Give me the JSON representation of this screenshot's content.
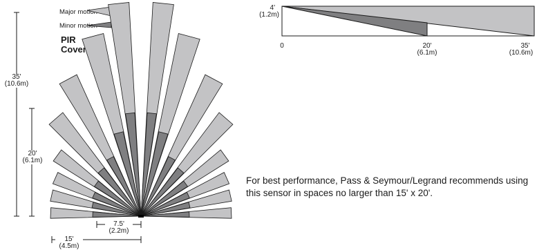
{
  "legend": {
    "major_label": "Major motion",
    "minor_label": "Minor motion"
  },
  "title_line1": "PIR",
  "title_line2": "Coverage",
  "colors": {
    "major": "#c3c3c5",
    "minor": "#7f7f81",
    "outline": "#1a1a1a"
  },
  "range_labels": {
    "far_ft": "35'",
    "far_m": "(10.6m)",
    "mid_ft": "20'",
    "mid_m": "(6.1m)",
    "half_width_ft": "7.5'",
    "half_width_m": "(2.2m)",
    "width_ft": "15'",
    "width_m": "(4.5m)"
  },
  "side_view": {
    "height_ft": "4'",
    "height_m": "(1.2m)",
    "tick_0": "0",
    "tick_20_ft": "20'",
    "tick_20_m": "(6.1m)",
    "tick_35_ft": "35'",
    "tick_35_m": "(10.6m)"
  },
  "note": "For best performance, Pass & Seymour/Legrand recommends using this sensor in spaces no larger than 15' x 20'."
}
